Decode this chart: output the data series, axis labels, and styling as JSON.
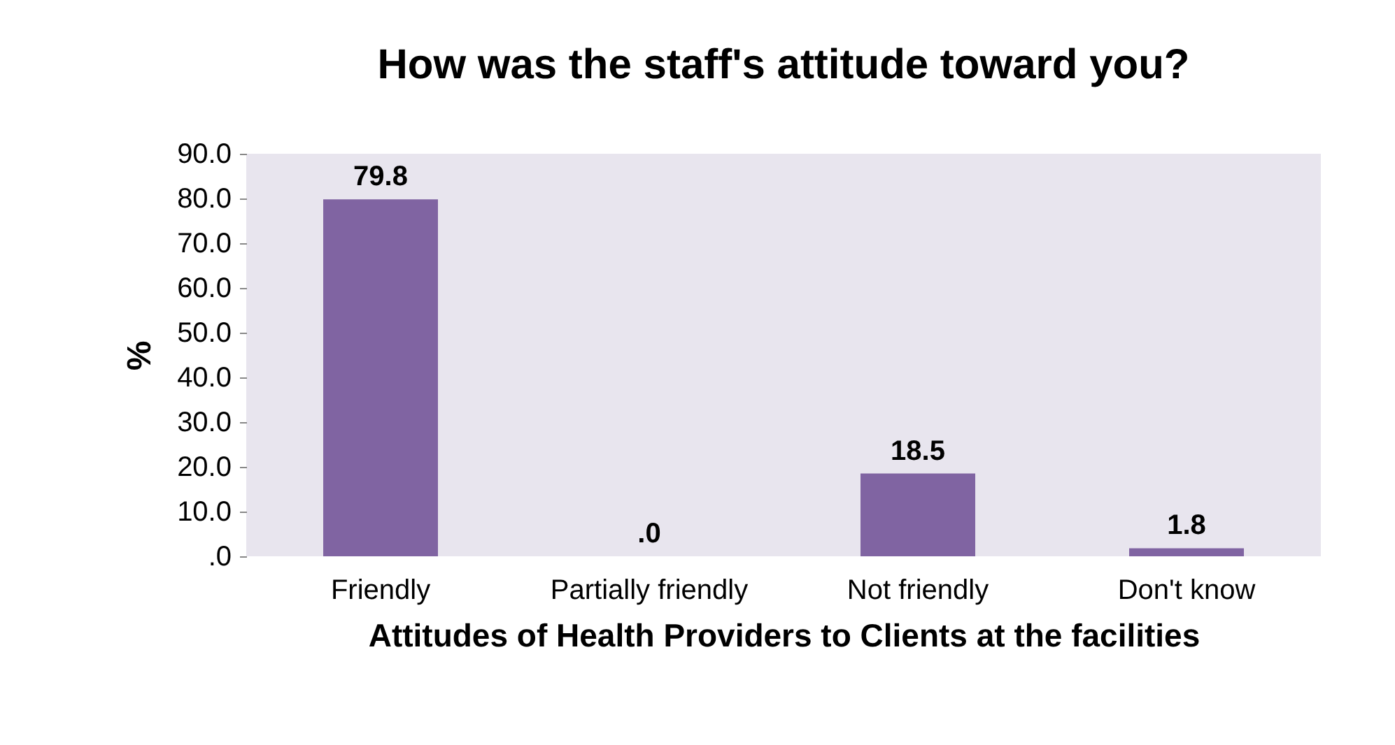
{
  "chart_data": {
    "type": "bar",
    "title": "How was the staff's attitude toward you?",
    "xlabel": "Attitudes of Health Providers to Clients at the facilities",
    "ylabel": "%",
    "categories": [
      "Friendly",
      "Partially friendly",
      "Not friendly",
      "Don't know"
    ],
    "values": [
      79.8,
      0,
      18.5,
      1.8
    ],
    "value_labels": [
      "79.8",
      ".0",
      "18.5",
      "1.8"
    ],
    "color": "#8064a2",
    "ylim": [
      0,
      90
    ],
    "yticks": [
      {
        "value": 0,
        "label": ".0"
      },
      {
        "value": 10,
        "label": "10.0"
      },
      {
        "value": 20,
        "label": "20.0"
      },
      {
        "value": 30,
        "label": "30.0"
      },
      {
        "value": 40,
        "label": "40.0"
      },
      {
        "value": 50,
        "label": "50.0"
      },
      {
        "value": 60,
        "label": "60.0"
      },
      {
        "value": 70,
        "label": "70.0"
      },
      {
        "value": 80,
        "label": "80.0"
      },
      {
        "value": 90,
        "label": "90.0"
      }
    ]
  }
}
